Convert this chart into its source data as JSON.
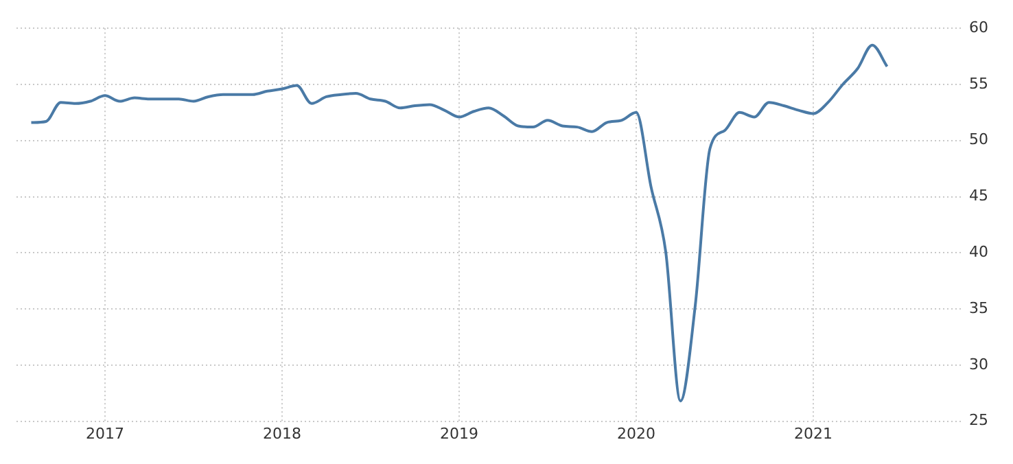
{
  "chart_data": {
    "type": "line",
    "x": [
      "2016-08",
      "2016-09",
      "2016-10",
      "2016-11",
      "2016-12",
      "2017-01",
      "2017-02",
      "2017-03",
      "2017-04",
      "2017-05",
      "2017-06",
      "2017-07",
      "2017-08",
      "2017-09",
      "2017-10",
      "2017-11",
      "2017-12",
      "2018-01",
      "2018-02",
      "2018-03",
      "2018-04",
      "2018-05",
      "2018-06",
      "2018-07",
      "2018-08",
      "2018-09",
      "2018-10",
      "2018-11",
      "2018-12",
      "2019-01",
      "2019-02",
      "2019-03",
      "2019-04",
      "2019-05",
      "2019-06",
      "2019-07",
      "2019-08",
      "2019-09",
      "2019-10",
      "2019-11",
      "2019-12",
      "2020-01",
      "2020-02",
      "2020-03",
      "2020-04",
      "2020-05",
      "2020-06",
      "2020-07",
      "2020-08",
      "2020-09",
      "2020-10",
      "2020-11",
      "2020-12",
      "2021-01",
      "2021-02",
      "2021-03",
      "2021-04",
      "2021-05",
      "2021-06"
    ],
    "series": [
      {
        "color": "#4a7aa6",
        "values": [
          51.6,
          51.7,
          53.4,
          53.3,
          53.5,
          54.0,
          53.5,
          53.8,
          53.7,
          53.7,
          53.7,
          53.5,
          53.9,
          54.1,
          54.1,
          54.1,
          54.4,
          54.6,
          54.9,
          53.3,
          53.9,
          54.1,
          54.2,
          53.7,
          53.5,
          52.9,
          53.1,
          53.2,
          52.7,
          52.1,
          52.6,
          52.9,
          52.2,
          51.3,
          51.2,
          51.8,
          51.3,
          51.2,
          50.8,
          51.6,
          51.8,
          52.5,
          45.9,
          40.1,
          26.8,
          35.3,
          49.3,
          50.9,
          52.5,
          52.1,
          53.4,
          53.1,
          52.7,
          52.4,
          53.4,
          55.0,
          56.4,
          58.5,
          56.6
        ]
      }
    ],
    "xlim": [
      "2016-07",
      "2021-11"
    ],
    "xticks": [
      "2017",
      "2018",
      "2019",
      "2020",
      "2021"
    ],
    "ylim": [
      25,
      60
    ],
    "yticks": [
      25,
      30,
      35,
      40,
      45,
      50,
      55,
      60
    ],
    "grid": true,
    "legend": false,
    "marker": "none",
    "line_style": "solid"
  }
}
